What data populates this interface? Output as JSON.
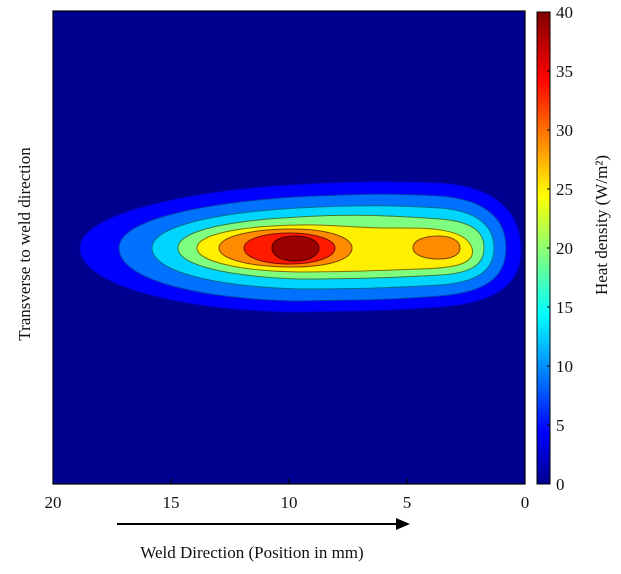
{
  "chart_data": {
    "type": "contour",
    "xlabel": "Weld Direction (Position in mm)",
    "ylabel": "Transverse to weld direction",
    "xlim": [
      20,
      0
    ],
    "x_ticks": [
      20,
      15,
      10,
      5,
      0
    ],
    "x_axis_reversed": true,
    "direction_arrow": "right",
    "colorbar": {
      "label": "Heat density (W/m²)",
      "range": [
        0,
        40
      ],
      "ticks": [
        0,
        5,
        10,
        15,
        20,
        25,
        30,
        35,
        40
      ],
      "colormap": "jet"
    },
    "contour_levels": [
      5,
      10,
      15,
      20,
      25,
      30,
      35
    ],
    "peaks": [
      {
        "x": 10,
        "value": 38
      },
      {
        "x": 4,
        "value": 27
      }
    ],
    "colors": {
      "background": "#00008f",
      "levels": [
        "#0000ff",
        "#0072ff",
        "#00d5ff",
        "#7fff80",
        "#ffef00",
        "#ff8c00",
        "#ff1a00",
        "#9b0000"
      ]
    }
  }
}
